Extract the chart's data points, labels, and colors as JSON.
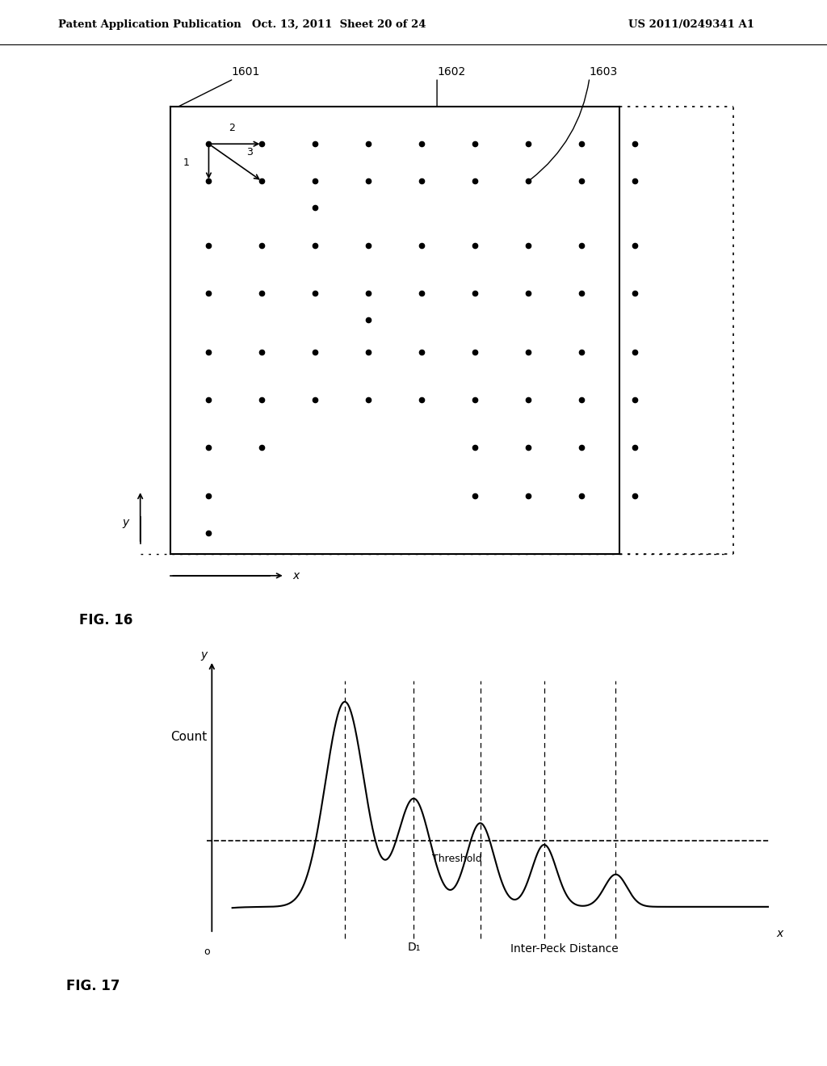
{
  "bg_color": "#ffffff",
  "header_left": "Patent Application Publication",
  "header_mid": "Oct. 13, 2011  Sheet 20 of 24",
  "header_right": "US 2011/0249341 A1",
  "fig16_label": "FIG. 16",
  "fig17_label": "FIG. 17",
  "label_1601": "1601",
  "label_1602": "1602",
  "label_1603": "1603",
  "count_label": "Count",
  "threshold_label": "Threshold",
  "d1_label": "D₁",
  "xlabel_fig17": "Inter-Peck Distance",
  "x_label": "x",
  "y_label": "y",
  "o_label": "o"
}
